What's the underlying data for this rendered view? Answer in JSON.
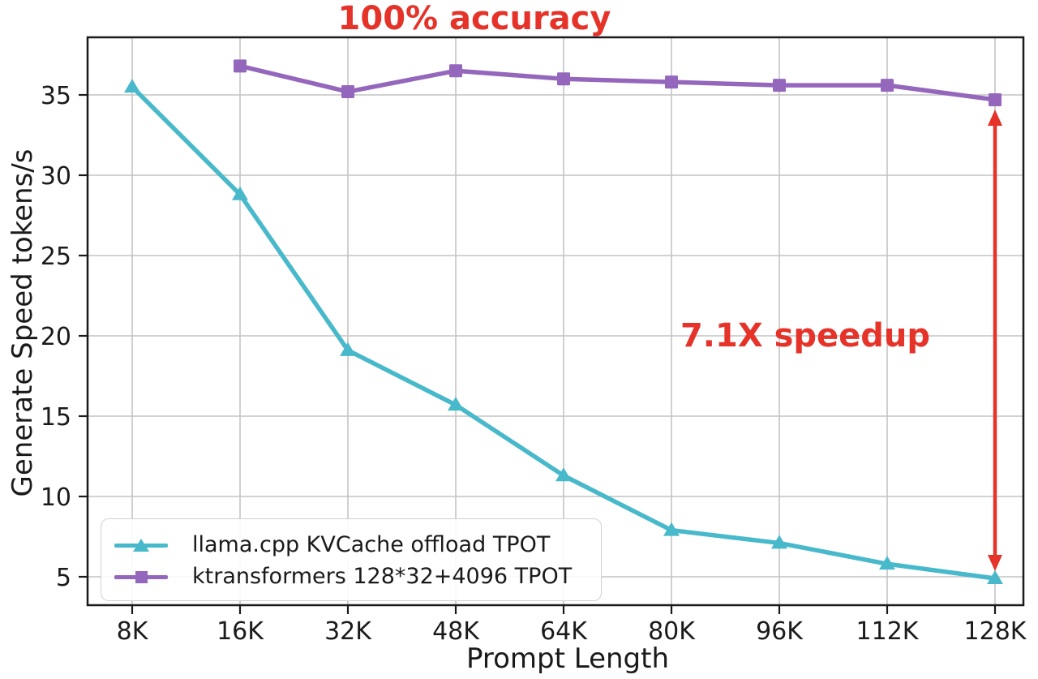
{
  "figure": {
    "title_annotation": "100% accuracy",
    "speedup_annotation": "7.1X speedup",
    "xlabel": "Prompt Length",
    "ylabel": "Generate Speed tokens/s"
  },
  "colors": {
    "llama_series": "#48b9cb",
    "ktransformers_series": "#9467bd",
    "annotation_red": "#e5332a",
    "grid": "#c4c4c4",
    "spine": "#1a1a1a",
    "tick_text": "#1a1a1a"
  },
  "chart_data": {
    "type": "line",
    "title": "100% accuracy",
    "xlabel": "Prompt Length",
    "ylabel": "Generate Speed tokens/s",
    "categories": [
      "8K",
      "16K",
      "32K",
      "48K",
      "64K",
      "80K",
      "96K",
      "112K",
      "128K"
    ],
    "y_ticks": [
      5,
      10,
      15,
      20,
      25,
      30,
      35
    ],
    "ylim": [
      3.2,
      38.5
    ],
    "grid": true,
    "legend_position": "lower left",
    "series": [
      {
        "name": "llama.cpp KVCache offload TPOT",
        "color": "#48b9cb",
        "marker": "triangle",
        "values": [
          35.5,
          28.8,
          19.1,
          15.7,
          11.3,
          7.9,
          7.1,
          5.8,
          4.9
        ]
      },
      {
        "name": "ktransformers 128*32+4096 TPOT",
        "color": "#9467bd",
        "marker": "square",
        "values": [
          null,
          36.8,
          35.2,
          36.5,
          36.0,
          35.8,
          35.6,
          35.6,
          34.7
        ]
      }
    ],
    "annotations": [
      {
        "text": "100% accuracy",
        "position": "top-center",
        "color": "#e5332a"
      },
      {
        "text": "7.1X speedup",
        "position": "mid-right",
        "color": "#e5332a",
        "arrow": {
          "x_category": "128K",
          "from_value": 34.7,
          "to_value": 4.9
        }
      }
    ]
  }
}
